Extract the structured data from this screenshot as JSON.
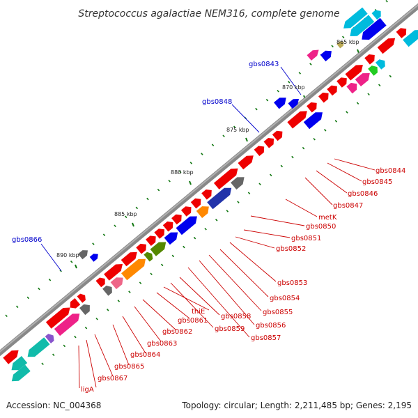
{
  "title": "Streptococcus agalactiae NEM316, complete genome",
  "footer": {
    "accession": "Accession: NC_004368",
    "summary": "Topology: circular; Length: 2,211,485 bp; Genes: 2,195"
  },
  "colors": {
    "backbone": "#7a7a7a",
    "gene_red": "#ee0000",
    "gene_blue": "#0000ee",
    "gene_cyan": "#00bbdd",
    "gene_teal": "#11bbaa",
    "gene_magenta": "#ee2288",
    "gene_gray": "#666666",
    "gene_orange": "#ff8800",
    "gene_olive": "#558800",
    "gene_indigo": "#2233aa",
    "gene_green": "#22cc22",
    "gene_pink": "#ee6688",
    "gene_purple": "#8855cc",
    "tick_green": "#117711",
    "label_red": "#cc0000",
    "label_blue": "#0000cc"
  },
  "kbp_labels": [
    {
      "id": "865",
      "text": "865 kbp"
    },
    {
      "id": "870",
      "text": "870 kbp"
    },
    {
      "id": "875",
      "text": "875 kbp"
    },
    {
      "id": "880",
      "text": "880 kbp"
    },
    {
      "id": "885",
      "text": "885 kbp"
    },
    {
      "id": "890",
      "text": "890 kbp"
    }
  ],
  "gene_labels": [
    {
      "id": "gbs0844",
      "text": "gbs0844",
      "color": "red"
    },
    {
      "id": "gbs0845",
      "text": "gbs0845",
      "color": "red"
    },
    {
      "id": "gbs0846",
      "text": "gbs0846",
      "color": "red"
    },
    {
      "id": "gbs0847",
      "text": "gbs0847",
      "color": "red"
    },
    {
      "id": "metK",
      "text": "metK",
      "color": "red"
    },
    {
      "id": "gbs0850",
      "text": "gbs0850",
      "color": "red"
    },
    {
      "id": "gbs0851",
      "text": "gbs0851",
      "color": "red"
    },
    {
      "id": "gbs0852",
      "text": "gbs0852",
      "color": "red"
    },
    {
      "id": "gbs0853",
      "text": "gbs0853",
      "color": "red"
    },
    {
      "id": "gbs0854",
      "text": "gbs0854",
      "color": "red"
    },
    {
      "id": "gbs0855",
      "text": "gbs0855",
      "color": "red"
    },
    {
      "id": "gbs0856",
      "text": "gbs0856",
      "color": "red"
    },
    {
      "id": "gbs0857",
      "text": "gbs0857",
      "color": "red"
    },
    {
      "id": "gbs0858",
      "text": "gbs0858",
      "color": "red"
    },
    {
      "id": "gbs0859",
      "text": "gbs0859",
      "color": "red"
    },
    {
      "id": "thiE",
      "text": "thiE",
      "color": "red"
    },
    {
      "id": "gbs0861",
      "text": "gbs0861",
      "color": "red"
    },
    {
      "id": "gbs0862",
      "text": "gbs0862",
      "color": "red"
    },
    {
      "id": "gbs0863",
      "text": "gbs0863",
      "color": "red"
    },
    {
      "id": "gbs0864",
      "text": "gbs0864",
      "color": "red"
    },
    {
      "id": "gbs0865",
      "text": "gbs0865",
      "color": "red"
    },
    {
      "id": "gbs0867",
      "text": "gbs0867",
      "color": "red"
    },
    {
      "id": "ligA",
      "text": "ligA",
      "color": "red"
    },
    {
      "id": "gbs0843",
      "text": "gbs0843",
      "color": "blue"
    },
    {
      "id": "gbs0848",
      "text": "gbs0848",
      "color": "blue"
    },
    {
      "id": "gbs0866",
      "text": "gbs0866",
      "color": "blue"
    }
  ]
}
